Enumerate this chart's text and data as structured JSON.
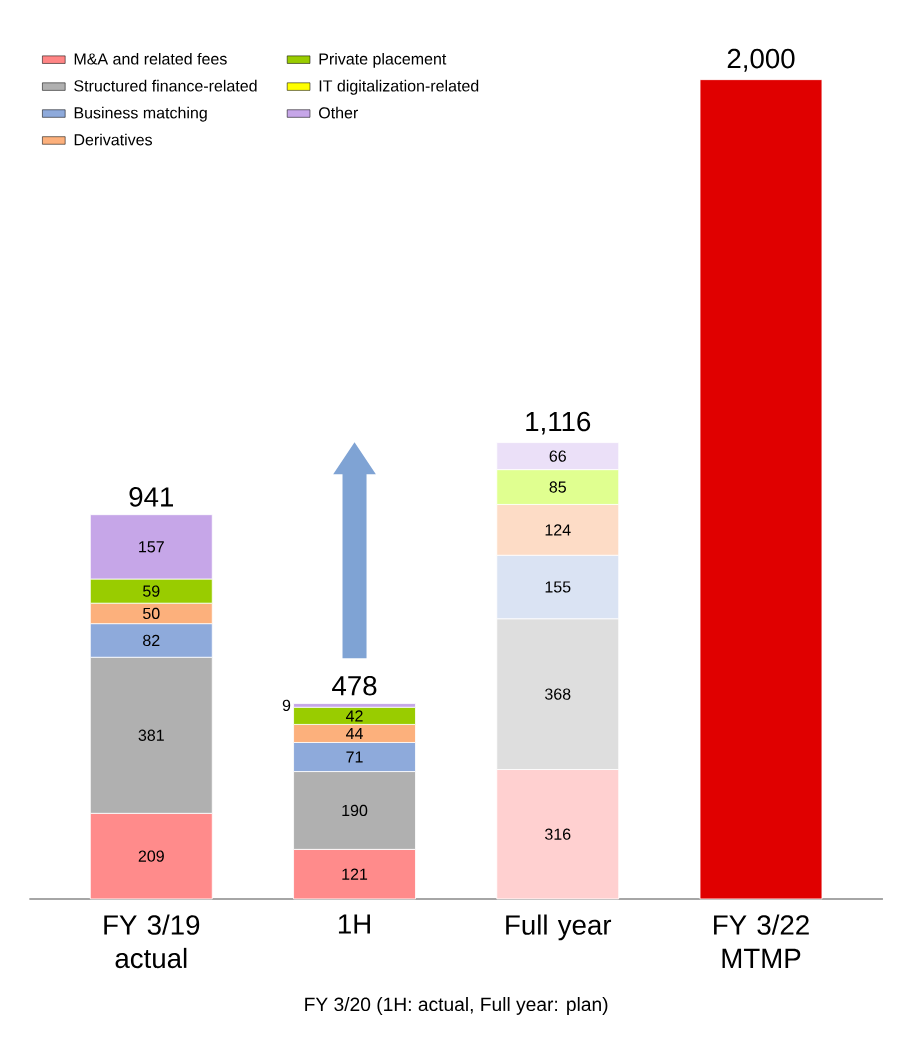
{
  "chart_data": {
    "type": "bar",
    "stacked": true,
    "categories": [
      "FY 3/19 actual",
      "1H",
      "Full year",
      "FY 3/22 MTMP"
    ],
    "series": [
      {
        "name": "M&A and related fees",
        "color": "#ff8585",
        "colors": [
          "#ff8b8b",
          "#ff8b8b",
          "#ffd0d0",
          null
        ],
        "values": [
          209,
          121,
          316,
          null
        ],
        "value_labels": [
          "209",
          "121",
          "316",
          null
        ]
      },
      {
        "name": "Structured finance-related",
        "color": "#b0b0b0",
        "colors": [
          "#b0b0b0",
          "#b0b0b0",
          "#dedede",
          null
        ],
        "values": [
          381,
          190,
          368,
          null
        ],
        "value_labels": [
          "381",
          "190",
          "368",
          null
        ]
      },
      {
        "name": "Business matching",
        "color": "#8eaadb",
        "colors": [
          "#8eaadb",
          "#8eaadb",
          "#dae3f3",
          null
        ],
        "values": [
          82,
          71,
          155,
          null
        ],
        "value_labels": [
          "82",
          "71",
          "155",
          null
        ]
      },
      {
        "name": "Derivatives",
        "color": "#fcb07c",
        "colors": [
          "#fcb07c",
          "#fcb07c",
          "#fddcc6",
          null
        ],
        "values": [
          50,
          44,
          124,
          null
        ],
        "value_labels": [
          "50",
          "44",
          "124",
          null
        ]
      },
      {
        "name": "Private placement",
        "color": "#99cc00",
        "colors": [
          "#99cc00",
          "#99cc00",
          "#e0ff90",
          null
        ],
        "values": [
          59,
          42,
          85,
          null
        ],
        "value_labels": [
          "59",
          "42",
          "85",
          null
        ]
      },
      {
        "name": "IT digitalization-related",
        "color": "#ffff00",
        "values": [
          null,
          null,
          null,
          null
        ]
      },
      {
        "name": "Other",
        "color": "#c6a6e8",
        "colors": [
          "#c6a6e8",
          "#c6a6e8",
          "#ebe0f8",
          null
        ],
        "values": [
          157,
          9,
          66,
          null
        ],
        "value_labels": [
          "157",
          "9",
          "66",
          null
        ]
      },
      {
        "color": "#e00000",
        "values": [
          null,
          null,
          null,
          2000
        ]
      }
    ],
    "totals": [
      "941",
      "478",
      "1,116",
      "2,000"
    ],
    "annotations": [
      "FY 3/20 (1H: actual, Full year: plan)"
    ],
    "legend": "top left"
  }
}
